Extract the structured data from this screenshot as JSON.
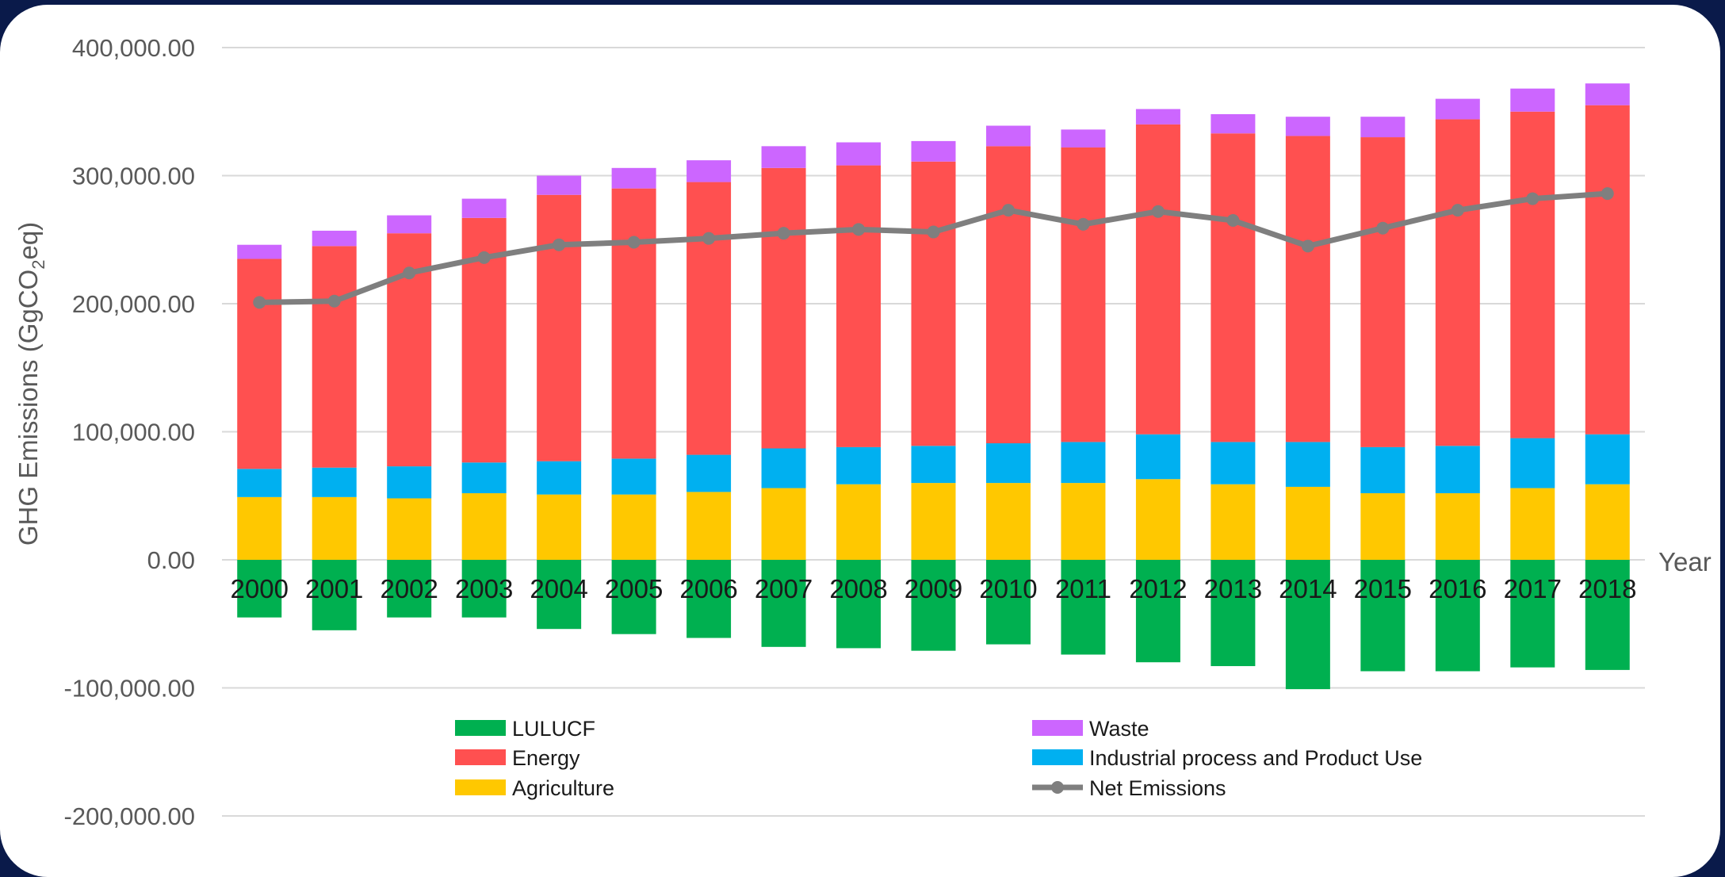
{
  "chart_data": {
    "type": "bar",
    "stacked": true,
    "categories": [
      "2000",
      "2001",
      "2002",
      "2003",
      "2004",
      "2005",
      "2006",
      "2007",
      "2008",
      "2009",
      "2010",
      "2011",
      "2012",
      "2013",
      "2014",
      "2015",
      "2016",
      "2017",
      "2018"
    ],
    "ylabel_main": "GHG Emissions (GgCO",
    "ylabel_sub": "2",
    "ylabel_tail": "eq)",
    "xlabel": "Year",
    "ylim": [
      -200000,
      400000
    ],
    "ytick_values": [
      400000,
      300000,
      200000,
      100000,
      0,
      -100000,
      -200000
    ],
    "ytick_labels": [
      "400,000.00",
      "300,000.00",
      "200,000.00",
      "100,000.00",
      "0.00",
      "-100,000.00",
      "-200,000.00"
    ],
    "grid": true,
    "legend_position": "bottom",
    "series": [
      {
        "name": "LULUCF",
        "color": "#00b050",
        "values": [
          -45000,
          -55000,
          -45000,
          -45000,
          -54000,
          -58000,
          -61000,
          -68000,
          -69000,
          -71000,
          -66000,
          -74000,
          -80000,
          -83000,
          -101000,
          -87000,
          -87000,
          -84000,
          -86000
        ]
      },
      {
        "name": "Agriculture",
        "color": "#ffc800",
        "values": [
          49000,
          49000,
          48000,
          52000,
          51000,
          51000,
          53000,
          56000,
          59000,
          60000,
          60000,
          60000,
          63000,
          59000,
          57000,
          52000,
          52000,
          56000,
          59000
        ]
      },
      {
        "name": "Industrial process and Product Use",
        "color": "#00b0f0",
        "values": [
          22000,
          23000,
          25000,
          24000,
          26000,
          28000,
          29000,
          31000,
          29000,
          29000,
          31000,
          32000,
          35000,
          33000,
          35000,
          36000,
          37000,
          39000,
          39000
        ]
      },
      {
        "name": "Energy",
        "color": "#ff5050",
        "values": [
          164000,
          173000,
          182000,
          191000,
          208000,
          211000,
          213000,
          219000,
          220000,
          222000,
          232000,
          230000,
          242000,
          241000,
          239000,
          242000,
          255000,
          255000,
          257000
        ]
      },
      {
        "name": "Waste",
        "color": "#cc66ff",
        "values": [
          11000,
          12000,
          14000,
          15000,
          15000,
          16000,
          17000,
          17000,
          18000,
          16000,
          16000,
          14000,
          12000,
          15000,
          15000,
          16000,
          16000,
          18000,
          17000
        ]
      }
    ],
    "line_series": {
      "name": "Net Emissions",
      "color": "#7f7f7f",
      "values": [
        201000,
        202000,
        224000,
        236000,
        246000,
        248000,
        251000,
        255000,
        258000,
        256000,
        273000,
        262000,
        272000,
        265000,
        245000,
        259000,
        273000,
        282000,
        286000
      ]
    },
    "legend_layout": [
      [
        "LULUCF",
        "Waste"
      ],
      [
        "Energy",
        "Industrial process and Product Use"
      ],
      [
        "Agriculture",
        "Net Emissions"
      ]
    ]
  }
}
